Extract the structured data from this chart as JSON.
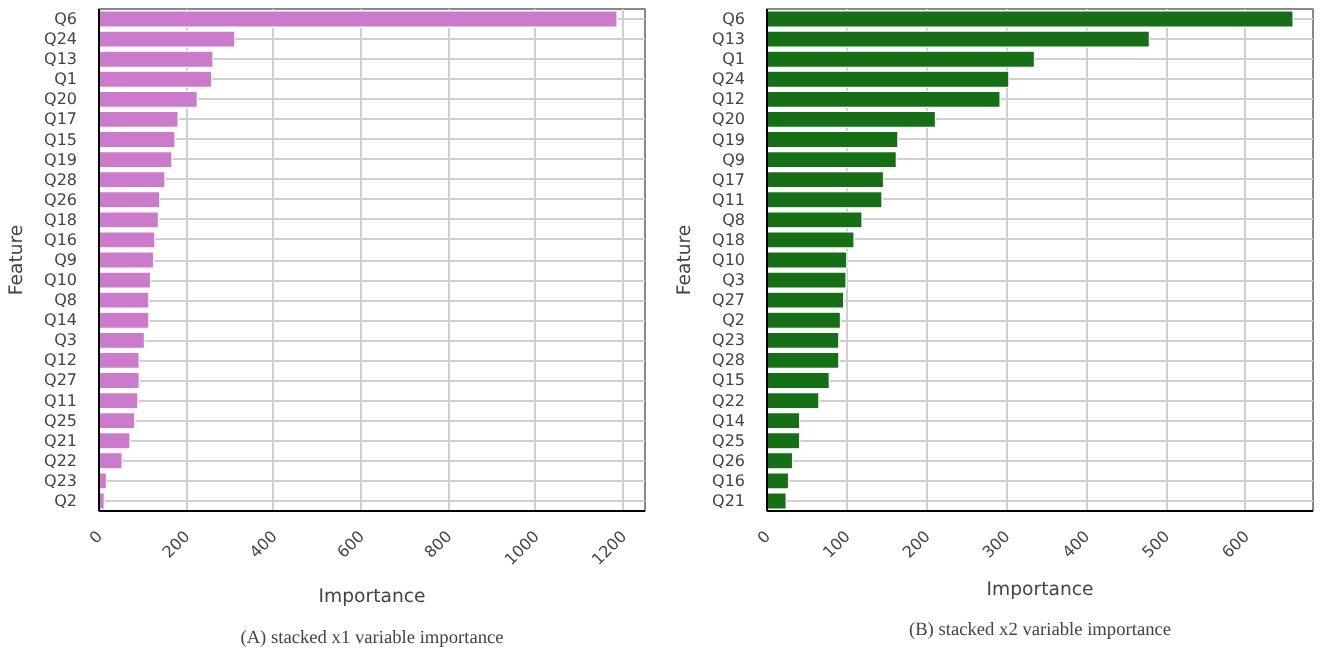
{
  "chart_data": [
    {
      "type": "bar",
      "orientation": "horizontal",
      "xlabel": "Importance",
      "ylabel": "Feature",
      "annotations": [
        "(A) stacked x1 variable importance"
      ],
      "categories": [
        "Q6",
        "Q24",
        "Q13",
        "Q1",
        "Q20",
        "Q17",
        "Q15",
        "Q19",
        "Q28",
        "Q26",
        "Q18",
        "Q16",
        "Q9",
        "Q10",
        "Q8",
        "Q14",
        "Q3",
        "Q12",
        "Q27",
        "Q11",
        "Q25",
        "Q21",
        "Q22",
        "Q23",
        "Q2"
      ],
      "series": [
        {
          "color": "#cc7acc",
          "values": [
            1186,
            311,
            261,
            258,
            225,
            181,
            174,
            167,
            151,
            139,
            136,
            128,
            125,
            118,
            114,
            114,
            104,
            92,
            92,
            89,
            82,
            71,
            53,
            17,
            12
          ]
        }
      ],
      "xlim": [
        0,
        1250
      ],
      "xticks": [
        0,
        200,
        400,
        600,
        800,
        1000,
        1200
      ],
      "grid": true
    },
    {
      "type": "bar",
      "orientation": "horizontal",
      "xlabel": "Importance",
      "ylabel": "Feature",
      "annotations": [
        "(B) stacked x2 variable importance"
      ],
      "categories": [
        "Q6",
        "Q13",
        "Q1",
        "Q24",
        "Q12",
        "Q20",
        "Q19",
        "Q9",
        "Q17",
        "Q11",
        "Q8",
        "Q18",
        "Q10",
        "Q3",
        "Q27",
        "Q2",
        "Q23",
        "Q28",
        "Q15",
        "Q22",
        "Q14",
        "Q25",
        "Q26",
        "Q16",
        "Q21"
      ],
      "series": [
        {
          "color": "#157015",
          "values": [
            659,
            479,
            335,
            303,
            292,
            211,
            164,
            162,
            146,
            144,
            119,
            109,
            100,
            99,
            96,
            92,
            90,
            90,
            78,
            65,
            41,
            41,
            32,
            27,
            24
          ]
        }
      ],
      "xlim": [
        0,
        684
      ],
      "xticks": [
        0,
        100,
        200,
        300,
        400,
        500,
        600
      ],
      "grid": true
    }
  ]
}
